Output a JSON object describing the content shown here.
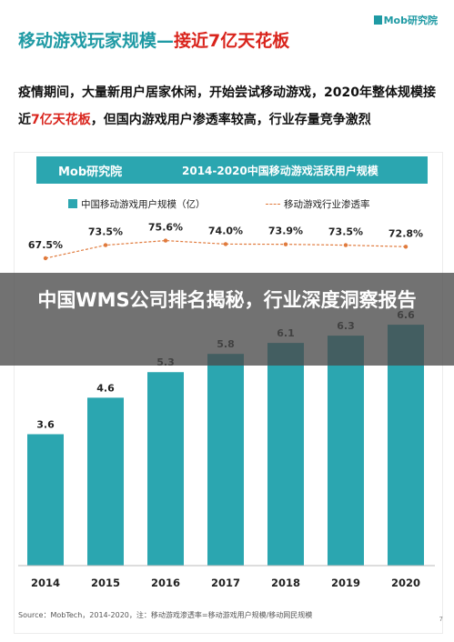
{
  "header": {
    "title_part1": "移动游戏玩家规模—",
    "title_part2": "接近7亿天花板",
    "brand": "Mob研究院"
  },
  "body": {
    "text_before": "疫情期间，大量新用户居家休闲，开始尝试移动游戏，2020年整体规模接近",
    "highlight": "7亿天花板",
    "text_after": "，但国内游戏用户渗透率较高，行业存量竞争激烈"
  },
  "chart_header": {
    "logo": "Mob研究院",
    "title": "2014-2020中国移动游戏活跃用户规模"
  },
  "legend": {
    "bar": "中国移动游戏用户规模（亿）",
    "line": "移动游戏行业渗透率"
  },
  "banner": {
    "title": "中国WMS公司排名揭秘，行业深度洞察报告"
  },
  "source": "Source：MobTech，2014-2020，注：移动游戏渗透率=移动游戏用户规模/移动网民规模",
  "page_number": "7",
  "colors": {
    "bar": "#2ba6b0",
    "line": "#e07a3c",
    "title_teal": "#1f9aa4",
    "highlight_red": "#d9241c"
  },
  "chart_data": {
    "type": "bar",
    "title": "2014-2020中国移动游戏活跃用户规模",
    "categories": [
      "2014",
      "2015",
      "2016",
      "2017",
      "2018",
      "2019",
      "2020"
    ],
    "series": [
      {
        "name": "中国移动游戏用户规模（亿）",
        "type": "bar",
        "values": [
          3.6,
          4.6,
          5.3,
          5.8,
          6.1,
          6.3,
          6.6
        ],
        "labels": [
          "3.6",
          "4.6",
          "5.3",
          "5.8",
          "6.1",
          "6.3",
          "6.6"
        ]
      },
      {
        "name": "移动游戏行业渗透率",
        "type": "line",
        "values": [
          67.5,
          73.5,
          75.6,
          74.0,
          73.9,
          73.5,
          72.8
        ],
        "labels": [
          "67.5%",
          "73.5%",
          "75.6%",
          "74.0%",
          "73.9%",
          "73.5%",
          "72.8%"
        ]
      }
    ],
    "xlabel": "",
    "ylabel": "",
    "ylim": [
      0,
      7
    ],
    "legend_position": "top"
  }
}
